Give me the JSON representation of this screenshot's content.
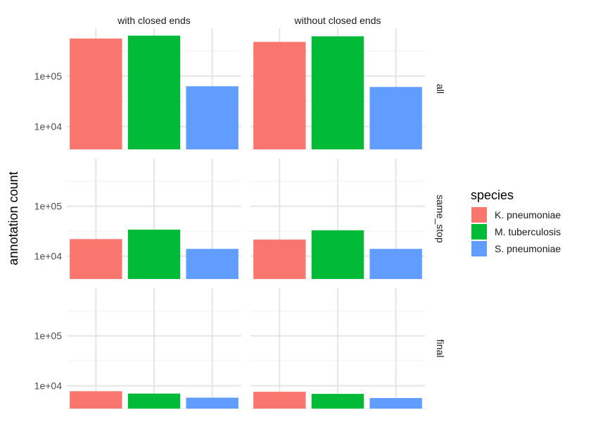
{
  "chart_data": {
    "type": "bar",
    "facet_columns": [
      "with closed ends",
      "without closed ends"
    ],
    "facet_rows": [
      "all",
      "same_stop",
      "final"
    ],
    "categories": [
      "K. pneumoniae",
      "M. tuberculosis",
      "S. pneumoniae"
    ],
    "colors": [
      "#F8766D",
      "#00BA38",
      "#619CFF"
    ],
    "ylabel": "annotation count",
    "xlabel": "",
    "yscale": "log10",
    "ylim": [
      3500,
      900000
    ],
    "yticks": [
      10000,
      100000
    ],
    "ytick_labels": [
      "1e+04",
      "1e+05"
    ],
    "legend": {
      "title": "species",
      "position": "right"
    },
    "panels": [
      {
        "col": 0,
        "row": 0,
        "values": [
          560000,
          640000,
          63000
        ]
      },
      {
        "col": 1,
        "row": 0,
        "values": [
          480000,
          620000,
          61000
        ]
      },
      {
        "col": 0,
        "row": 1,
        "values": [
          22000,
          34000,
          14000
        ]
      },
      {
        "col": 1,
        "row": 1,
        "values": [
          21500,
          33000,
          14000
        ]
      },
      {
        "col": 0,
        "row": 2,
        "values": [
          7800,
          7000,
          5800
        ]
      },
      {
        "col": 1,
        "row": 2,
        "values": [
          7600,
          6900,
          5700
        ]
      }
    ]
  }
}
